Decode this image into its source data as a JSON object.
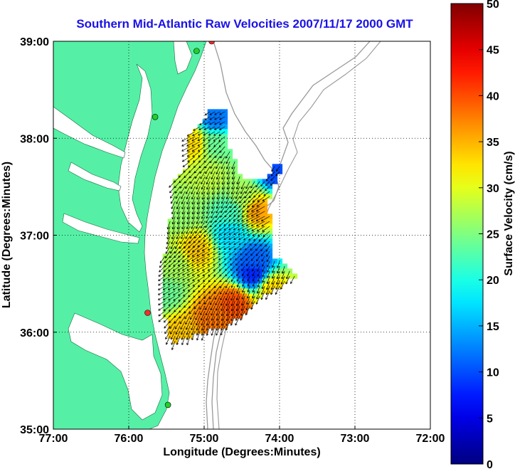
{
  "chart_data": {
    "type": "heatmap",
    "title": "Southern Mid-Atlantic Raw Velocities 2007/11/17 2000 GMT",
    "xlabel": "Longitude (Degrees:Minutes)",
    "ylabel": "Latitude (Degrees:Minutes)",
    "colorbar_label": "Surface Velocity (cm/s)",
    "xlim": [
      -77,
      -72
    ],
    "ylim": [
      35,
      39
    ],
    "clim": [
      0,
      50
    ],
    "x_ticks": [
      {
        "value": -77,
        "label": "77:00"
      },
      {
        "value": -76,
        "label": "76:00"
      },
      {
        "value": -75,
        "label": "75:00"
      },
      {
        "value": -74,
        "label": "74:00"
      },
      {
        "value": -73,
        "label": "73:00"
      },
      {
        "value": -72,
        "label": "72:00"
      }
    ],
    "y_ticks": [
      {
        "value": 35,
        "label": "35:00"
      },
      {
        "value": 36,
        "label": "36:00"
      },
      {
        "value": 37,
        "label": "37:00"
      },
      {
        "value": 38,
        "label": "38:00"
      },
      {
        "value": 39,
        "label": "39:00"
      }
    ],
    "colorbar_ticks": [
      0,
      5,
      10,
      15,
      20,
      25,
      30,
      35,
      40,
      45,
      50
    ],
    "grid": true,
    "colormap": "jet",
    "land_color": "#55f0a6",
    "bathymetry_color": "#999999",
    "coverage_region_lonlat": [
      [
        -74.95,
        38.3
      ],
      [
        -74.7,
        38.3
      ],
      [
        -74.7,
        37.95
      ],
      [
        -74.5,
        37.6
      ],
      [
        -74.2,
        37.55
      ],
      [
        -74.1,
        37.7
      ],
      [
        -73.95,
        37.75
      ],
      [
        -74.15,
        37.35
      ],
      [
        -74.1,
        37.0
      ],
      [
        -74.1,
        36.8
      ],
      [
        -73.75,
        36.6
      ],
      [
        -74.05,
        36.45
      ],
      [
        -74.25,
        36.35
      ],
      [
        -74.45,
        36.2
      ],
      [
        -74.75,
        36.05
      ],
      [
        -75.05,
        36.0
      ],
      [
        -75.2,
        35.95
      ],
      [
        -75.4,
        35.9
      ],
      [
        -75.5,
        36.0
      ],
      [
        -75.55,
        36.35
      ],
      [
        -75.55,
        36.6
      ],
      [
        -75.5,
        36.9
      ],
      [
        -75.45,
        37.2
      ],
      [
        -75.45,
        37.55
      ],
      [
        -75.25,
        37.7
      ],
      [
        -75.25,
        38.0
      ],
      [
        -75.0,
        38.2
      ]
    ],
    "velocity_hotspots": [
      {
        "lon": -75.15,
        "lat": 37.95,
        "value": 33
      },
      {
        "lon": -74.85,
        "lat": 37.95,
        "value": 24
      },
      {
        "lon": -74.85,
        "lat": 38.2,
        "value": 12
      },
      {
        "lon": -74.95,
        "lat": 37.6,
        "value": 28
      },
      {
        "lon": -74.3,
        "lat": 37.25,
        "value": 36
      },
      {
        "lon": -74.5,
        "lat": 37.4,
        "value": 27
      },
      {
        "lon": -74.65,
        "lat": 37.0,
        "value": 17
      },
      {
        "lon": -75.1,
        "lat": 36.85,
        "value": 34
      },
      {
        "lon": -75.4,
        "lat": 36.7,
        "value": 27
      },
      {
        "lon": -74.35,
        "lat": 36.75,
        "value": 11
      },
      {
        "lon": -74.35,
        "lat": 36.6,
        "value": 8
      },
      {
        "lon": -74.1,
        "lat": 36.45,
        "value": 33
      },
      {
        "lon": -74.6,
        "lat": 36.3,
        "value": 40
      },
      {
        "lon": -74.9,
        "lat": 36.15,
        "value": 38
      },
      {
        "lon": -75.3,
        "lat": 36.0,
        "value": 34
      },
      {
        "lon": -75.5,
        "lat": 36.4,
        "value": 24
      },
      {
        "lon": -75.3,
        "lat": 37.2,
        "value": 26
      },
      {
        "lon": -74.05,
        "lat": 37.65,
        "value": 10
      },
      {
        "lon": -74.65,
        "lat": 37.25,
        "value": 22
      }
    ],
    "stations": [
      {
        "lon": -74.9,
        "lat": 39.0,
        "color": "#ff2a2a"
      },
      {
        "lon": -75.1,
        "lat": 38.9,
        "color": "#22d02a"
      },
      {
        "lon": -75.65,
        "lat": 38.22,
        "color": "#22d02a"
      },
      {
        "lon": -75.75,
        "lat": 36.2,
        "color": "#ff2a2a"
      },
      {
        "lon": -75.48,
        "lat": 35.25,
        "color": "#22d02a"
      }
    ]
  }
}
